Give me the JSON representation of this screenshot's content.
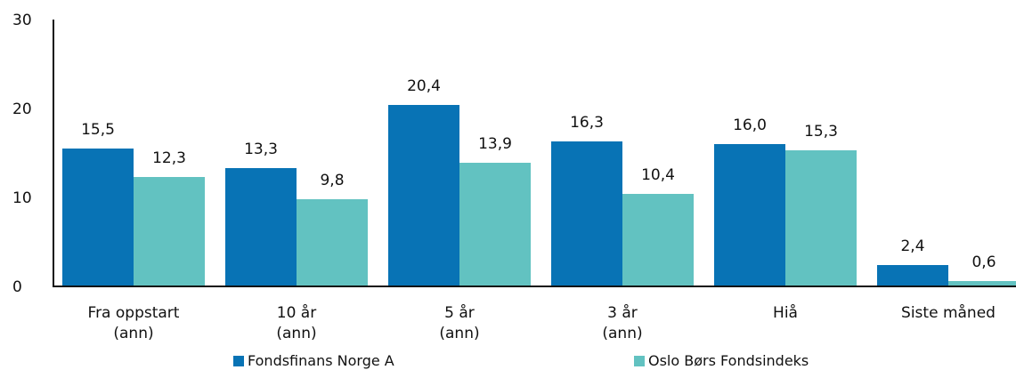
{
  "chart_data": {
    "type": "bar",
    "categories": [
      [
        "Fra oppstart",
        "(ann)"
      ],
      [
        "10 år",
        "(ann)"
      ],
      [
        "5 år",
        "(ann)"
      ],
      [
        "3 år",
        "(ann)"
      ],
      [
        "Hiå"
      ],
      [
        "Siste måned"
      ]
    ],
    "series": [
      {
        "name": "Fondsfinans Norge A",
        "color": "#0873B5",
        "values": [
          15.5,
          13.3,
          20.4,
          16.3,
          16.0,
          2.4
        ],
        "value_labels": [
          "15,5",
          "13,3",
          "20,4",
          "16,3",
          "16,0",
          "2,4"
        ]
      },
      {
        "name": "Oslo Børs Fondsindeks",
        "color": "#62C2C1",
        "values": [
          12.3,
          9.8,
          13.9,
          10.4,
          15.3,
          0.6
        ],
        "value_labels": [
          "12,3",
          "9,8",
          "13,9",
          "10,4",
          "15,3",
          "0,6"
        ]
      }
    ],
    "ylim": [
      0,
      30
    ],
    "yticks": [
      "0",
      "10",
      "20",
      "30"
    ],
    "title": "",
    "xlabel": "",
    "ylabel": "",
    "grid": false,
    "legend_position": "bottom"
  }
}
